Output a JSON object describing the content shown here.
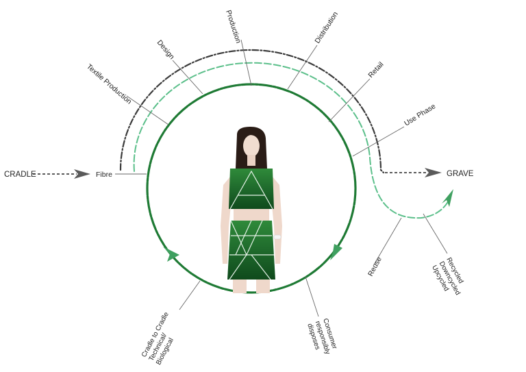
{
  "labels": {
    "cradle": "CRADLE",
    "fibre": "Fibre",
    "grave": "GRAVE",
    "textile_production": "Textile Production",
    "design": "Design",
    "production": "Production",
    "distribution": "Distribution",
    "retail": "Retail",
    "use_phase": "Use Phase",
    "reuse": "Reuse",
    "recycled_lines": [
      "Recycled",
      "Downcycled",
      "Upcycled"
    ],
    "consumer_lines": [
      "Consumer",
      "responsibly",
      "disposes"
    ],
    "cradle_to_cradle_lines": [
      "Cradle to Cradle",
      "Technical/",
      "Biological"
    ]
  },
  "colors": {
    "text": "#222222",
    "leader_line": "#666666",
    "outer_track": "#3a3a3a",
    "middle_track": "#5bbf8a",
    "inner_circle": "#1e7a34",
    "arrow_head_dark": "#5a5a5a",
    "arrow_head_green": "#3fa060",
    "dress_green": "#2f8a3a"
  }
}
